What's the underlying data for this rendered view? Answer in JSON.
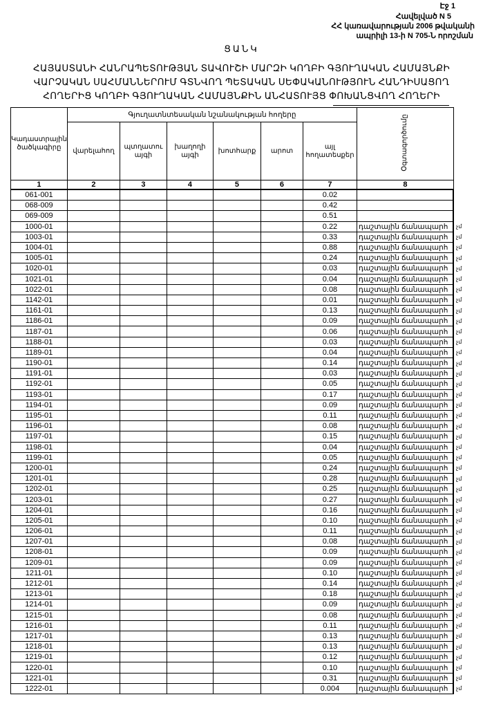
{
  "header": {
    "page": "Էջ 1",
    "annex": "Հավելված N 5",
    "government": "ՀՀ կառավարության 2006 թվականի",
    "decree": "ապրիլի 13-ի N 705-Ն որոշման"
  },
  "title": "ՑԱՆԿ",
  "title_lines": [
    "ՀԱՅԱՍՏԱՆԻ ՀԱՆՐԱՊԵՏՈՒԹՅԱՆ ՏԱՎՈՒՇԻ ՄԱՐԶԻ ԿՈՂԲԻ ԳՅՈՒՂԱԿԱՆ ՀԱՄԱՅՆՔԻ",
    "ՎԱՐՉԱԿԱՆ ՍԱՀՄԱՆՆԵՐՈՒՄ ԳՏՆՎՈՂ ՊԵՏԱԿԱՆ ՍԵՓԱԿԱՆՈՒԹՅՈՒՆ ՀԱՆԴԻՍԱՑՈՂ",
    "ՀՈՂԵՐԻՑ ԿՈՂԲԻ ԳՅՈՒՂԱԿԱՆ ՀԱՄԱՅՆՔԻՆ ԱՆՀԱՏՈՒՅՑ ՓՈԽԱՆՑՎՈՂ ՀՈՂԵՐԻ"
  ],
  "table": {
    "group_header": "Գյուղատնտեսական նշանակության հողերը",
    "columns": [
      "Կադաստրային ծածկագիրը",
      "վարելահող",
      "պտղատու այգի",
      "խաղողի այգի",
      "խոտհարք",
      "արոտ",
      "այլ հողատեսքեր",
      "Օգտագործումը"
    ],
    "column_numbers": [
      "1",
      "2",
      "3",
      "4",
      "5",
      "6",
      "7",
      "8"
    ],
    "use_label": "դաշտային ճանապարհ",
    "overflow_fragment": "չմ",
    "rows": [
      {
        "code": "061-001",
        "other": "0.02",
        "use": ""
      },
      {
        "code": "068-009",
        "other": "0.42",
        "use": ""
      },
      {
        "code": "069-009",
        "other": "0.51",
        "use": ""
      },
      {
        "code": "1000-01",
        "other": "0.22",
        "use": "դաշտային ճանապարհ"
      },
      {
        "code": "1003-01",
        "other": "0.33",
        "use": "դաշտային ճանապարհ"
      },
      {
        "code": "1004-01",
        "other": "0.88",
        "use": "դաշտային ճանապարհ"
      },
      {
        "code": "1005-01",
        "other": "0.24",
        "use": "դաշտային ճանապարհ"
      },
      {
        "code": "1020-01",
        "other": "0.03",
        "use": "դաշտային ճանապարհ"
      },
      {
        "code": "1021-01",
        "other": "0.04",
        "use": "դաշտային ճանապարհ"
      },
      {
        "code": "1022-01",
        "other": "0.08",
        "use": "դաշտային ճանապարհ"
      },
      {
        "code": "1142-01",
        "other": "0.01",
        "use": "դաշտային ճանապարհ"
      },
      {
        "code": "1161-01",
        "other": "0.13",
        "use": "դաշտային ճանապարհ"
      },
      {
        "code": "1186-01",
        "other": "0.09",
        "use": "դաշտային ճանապարհ"
      },
      {
        "code": "1187-01",
        "other": "0.06",
        "use": "դաշտային ճանապարհ"
      },
      {
        "code": "1188-01",
        "other": "0.03",
        "use": "դաշտային ճանապարհ"
      },
      {
        "code": "1189-01",
        "other": "0.04",
        "use": "դաշտային ճանապարհ"
      },
      {
        "code": "1190-01",
        "other": "0.14",
        "use": "դաշտային ճանապարհ"
      },
      {
        "code": "1191-01",
        "other": "0.03",
        "use": "դաշտային ճանապարհ"
      },
      {
        "code": "1192-01",
        "other": "0.05",
        "use": "դաշտային ճանապարհ"
      },
      {
        "code": "1193-01",
        "other": "0.17",
        "use": "դաշտային ճանապարհ"
      },
      {
        "code": "1194-01",
        "other": "0.09",
        "use": "դաշտային ճանապարհ"
      },
      {
        "code": "1195-01",
        "other": "0.11",
        "use": "դաշտային ճանապարհ"
      },
      {
        "code": "1196-01",
        "other": "0.08",
        "use": "դաշտային ճանապարհ"
      },
      {
        "code": "1197-01",
        "other": "0.15",
        "use": "դաշտային ճանապարհ"
      },
      {
        "code": "1198-01",
        "other": "0.04",
        "use": "դաշտային ճանապարհ"
      },
      {
        "code": "1199-01",
        "other": "0.05",
        "use": "դաշտային ճանապարհ"
      },
      {
        "code": "1200-01",
        "other": "0.24",
        "use": "դաշտային ճանապարհ"
      },
      {
        "code": "1201-01",
        "other": "0.28",
        "use": "դաշտային ճանապարհ"
      },
      {
        "code": "1202-01",
        "other": "0.25",
        "use": "դաշտային ճանապարհ"
      },
      {
        "code": "1203-01",
        "other": "0.27",
        "use": "դաշտային ճանապարհ"
      },
      {
        "code": "1204-01",
        "other": "0.16",
        "use": "դաշտային ճանապարհ"
      },
      {
        "code": "1205-01",
        "other": "0.10",
        "use": "դաշտային ճանապարհ"
      },
      {
        "code": "1206-01",
        "other": "0.11",
        "use": "դաշտային ճանապարհ"
      },
      {
        "code": "1207-01",
        "other": "0.08",
        "use": "դաշտային ճանապարհ"
      },
      {
        "code": "1208-01",
        "other": "0.09",
        "use": "դաշտային ճանապարհ"
      },
      {
        "code": "1209-01",
        "other": "0.09",
        "use": "դաշտային ճանապարհ"
      },
      {
        "code": "1211-01",
        "other": "0.10",
        "use": "դաշտային ճանապարհ"
      },
      {
        "code": "1212-01",
        "other": "0.14",
        "use": "դաշտային ճանապարհ"
      },
      {
        "code": "1213-01",
        "other": "0.18",
        "use": "դաշտային ճանապարհ"
      },
      {
        "code": "1214-01",
        "other": "0.09",
        "use": "դաշտային ճանապարհ"
      },
      {
        "code": "1215-01",
        "other": "0.08",
        "use": "դաշտային ճանապարհ"
      },
      {
        "code": "1216-01",
        "other": "0.11",
        "use": "դաշտային ճանապարհ"
      },
      {
        "code": "1217-01",
        "other": "0.13",
        "use": "դաշտային ճանապարհ"
      },
      {
        "code": "1218-01",
        "other": "0.13",
        "use": "դաշտային ճանապարհ"
      },
      {
        "code": "1219-01",
        "other": "0.12",
        "use": "դաշտային ճանապարհ"
      },
      {
        "code": "1220-01",
        "other": "0.10",
        "use": "դաշտային ճանապարհ"
      },
      {
        "code": "1221-01",
        "other": "0.31",
        "use": "դաշտային ճանապարհ"
      },
      {
        "code": "1222-01",
        "other": "0.004",
        "use": "դաշտային ճանապարհ"
      }
    ]
  }
}
